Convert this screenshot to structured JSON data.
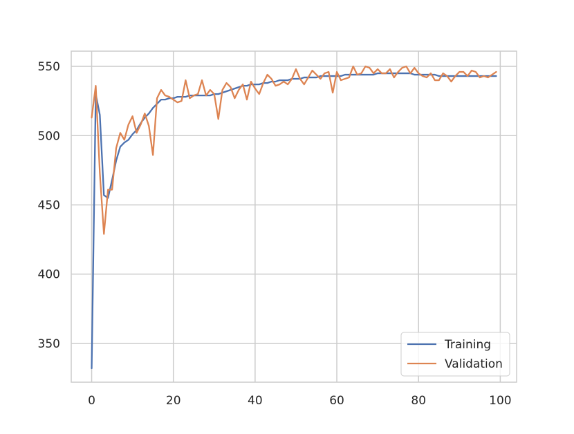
{
  "chart_data": {
    "type": "line",
    "title": "",
    "xlabel": "",
    "ylabel": "",
    "xlim": [
      -5,
      104
    ],
    "ylim": [
      322,
      561
    ],
    "xticks": [
      0,
      20,
      40,
      60,
      80,
      100
    ],
    "yticks": [
      350,
      400,
      450,
      500,
      550
    ],
    "xtick_labels": [
      "0",
      "20",
      "40",
      "60",
      "80",
      "100"
    ],
    "ytick_labels": [
      "350",
      "400",
      "450",
      "500",
      "550"
    ],
    "grid": true,
    "legend_position": "bottom-right",
    "series": [
      {
        "name": "Training",
        "color": "#4c72b0",
        "x": [
          0,
          1,
          2,
          3,
          4,
          5,
          6,
          7,
          8,
          9,
          10,
          11,
          12,
          13,
          14,
          15,
          16,
          17,
          18,
          19,
          20,
          21,
          22,
          23,
          24,
          25,
          26,
          27,
          28,
          29,
          30,
          31,
          32,
          33,
          34,
          35,
          36,
          37,
          38,
          39,
          40,
          41,
          42,
          43,
          44,
          45,
          46,
          47,
          48,
          49,
          50,
          51,
          52,
          53,
          54,
          55,
          56,
          57,
          58,
          59,
          60,
          61,
          62,
          63,
          64,
          65,
          66,
          67,
          68,
          69,
          70,
          71,
          72,
          73,
          74,
          75,
          76,
          77,
          78,
          79,
          80,
          81,
          82,
          83,
          84,
          85,
          86,
          87,
          88,
          89,
          90,
          91,
          92,
          93,
          94,
          95,
          96,
          97,
          98,
          99
        ],
        "values": [
          332,
          530,
          515,
          457,
          455,
          468,
          482,
          492,
          495,
          497,
          501,
          504,
          509,
          513,
          516,
          520,
          523,
          526,
          526,
          527,
          527,
          528,
          528,
          528,
          529,
          529,
          529,
          529,
          529,
          529,
          530,
          530,
          531,
          532,
          533,
          534,
          535,
          536,
          536,
          537,
          537,
          537,
          538,
          538,
          539,
          539,
          540,
          540,
          540,
          541,
          541,
          541,
          542,
          542,
          542,
          542,
          543,
          543,
          543,
          543,
          543,
          543,
          544,
          544,
          544,
          544,
          544,
          544,
          544,
          544,
          545,
          545,
          545,
          545,
          545,
          545,
          545,
          545,
          545,
          544,
          544,
          544,
          544,
          544,
          544,
          543,
          543,
          543,
          543,
          543,
          543,
          543,
          543,
          543,
          543,
          543,
          543,
          543,
          543,
          543
        ]
      },
      {
        "name": "Validation",
        "color": "#dd8452",
        "x": [
          0,
          1,
          2,
          3,
          4,
          5,
          6,
          7,
          8,
          9,
          10,
          11,
          12,
          13,
          14,
          15,
          16,
          17,
          18,
          19,
          20,
          21,
          22,
          23,
          24,
          25,
          26,
          27,
          28,
          29,
          30,
          31,
          32,
          33,
          34,
          35,
          36,
          37,
          38,
          39,
          40,
          41,
          42,
          43,
          44,
          45,
          46,
          47,
          48,
          49,
          50,
          51,
          52,
          53,
          54,
          55,
          56,
          57,
          58,
          59,
          60,
          61,
          62,
          63,
          64,
          65,
          66,
          67,
          68,
          69,
          70,
          71,
          72,
          73,
          74,
          75,
          76,
          77,
          78,
          79,
          80,
          81,
          82,
          83,
          84,
          85,
          86,
          87,
          88,
          89,
          90,
          91,
          92,
          93,
          94,
          95,
          96,
          97,
          98,
          99
        ],
        "values": [
          513,
          536,
          473,
          429,
          461,
          461,
          491,
          502,
          497,
          508,
          514,
          502,
          508,
          516,
          507,
          486,
          527,
          533,
          529,
          528,
          526,
          524,
          525,
          540,
          527,
          529,
          530,
          540,
          529,
          533,
          530,
          512,
          533,
          538,
          535,
          527,
          533,
          537,
          526,
          539,
          534,
          530,
          538,
          544,
          541,
          536,
          537,
          539,
          537,
          541,
          548,
          541,
          537,
          542,
          547,
          544,
          541,
          545,
          546,
          531,
          546,
          540,
          541,
          542,
          550,
          544,
          545,
          550,
          549,
          545,
          548,
          545,
          545,
          548,
          542,
          546,
          549,
          550,
          545,
          549,
          545,
          543,
          542,
          545,
          540,
          540,
          545,
          543,
          539,
          543,
          546,
          546,
          543,
          547,
          546,
          542,
          543,
          542,
          544,
          546
        ]
      }
    ]
  }
}
